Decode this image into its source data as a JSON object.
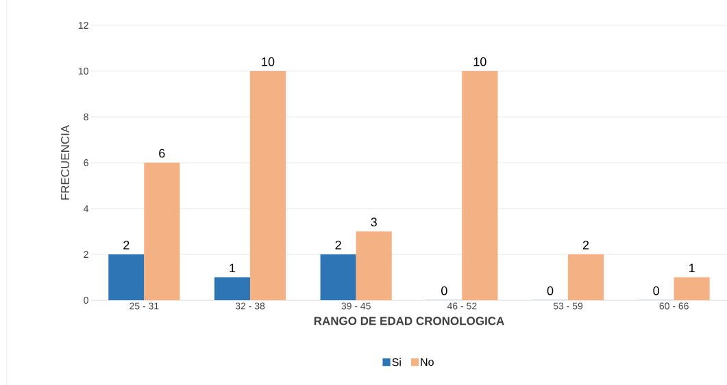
{
  "chart_data": {
    "type": "bar",
    "xlabel": "RANGO DE EDAD CRONOLOGICA",
    "ylabel": "FRECUENCIA",
    "categories": [
      "25 - 31",
      "32 - 38",
      "39 - 45",
      "46 - 52",
      "53 - 59",
      "60 - 66"
    ],
    "series": [
      {
        "name": "Si",
        "color": "#2e75b6",
        "values": [
          2,
          1,
          2,
          0,
          0,
          0
        ]
      },
      {
        "name": "No",
        "color": "#f4b183",
        "values": [
          6,
          10,
          3,
          10,
          2,
          1
        ]
      }
    ],
    "ylim": [
      0,
      12
    ],
    "yticks": [
      0,
      2,
      4,
      6,
      8,
      10,
      12
    ],
    "grid": "y",
    "legend": "bottom",
    "data_labels": true
  }
}
